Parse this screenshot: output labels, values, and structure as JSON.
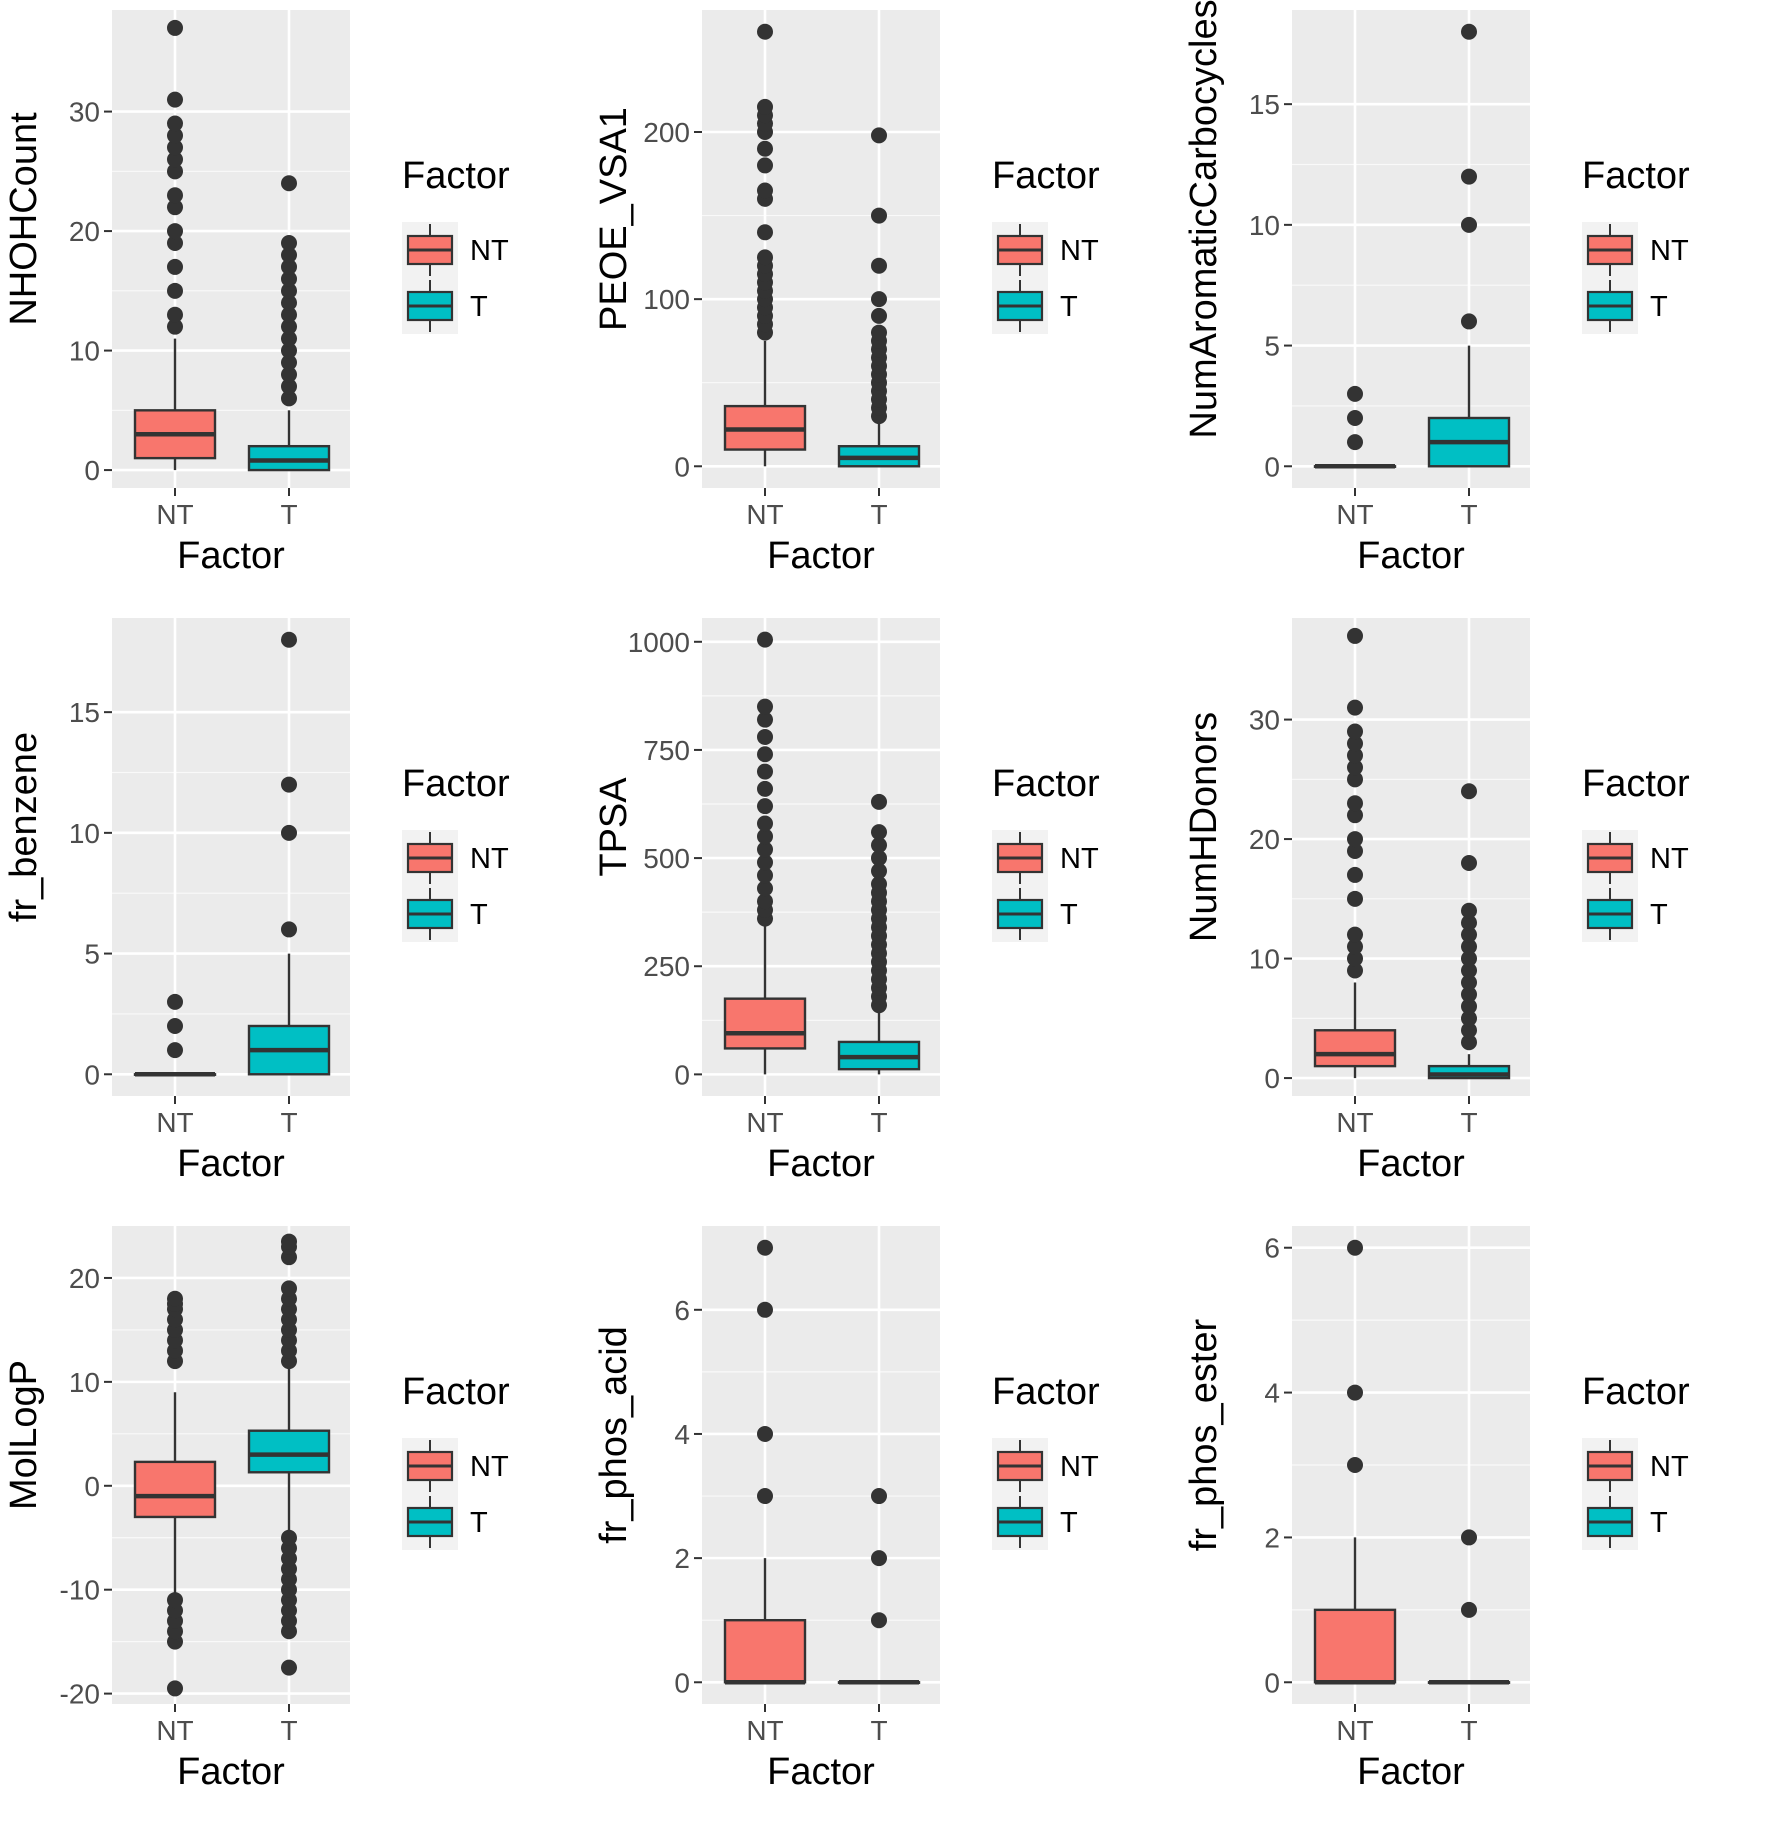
{
  "colors": {
    "NT": "#f8766d",
    "T": "#00bfc4",
    "panel_bg": "#ebebeb",
    "grid": "#ffffff",
    "outline": "#333333",
    "outlier": "#333333"
  },
  "chart_data": [
    {
      "type": "box",
      "ylabel": "NHOHCount",
      "xlabel": "Factor",
      "ylim": [
        -1.5,
        38.5
      ],
      "yticks": [
        0,
        10,
        20,
        30
      ],
      "ytick_labels": [
        "0",
        "10",
        "20",
        "30"
      ],
      "categories": [
        "NT",
        "T"
      ],
      "boxes": [
        {
          "name": "NT",
          "q1": 1,
          "median": 3,
          "q3": 5,
          "whisker_low": 0,
          "whisker_high": 11,
          "outliers": [
            12,
            13,
            15,
            17,
            19,
            20,
            22,
            23,
            25,
            26,
            27,
            28,
            29,
            31,
            37
          ]
        },
        {
          "name": "T",
          "q1": 0,
          "median": 0.8,
          "q3": 2,
          "whisker_low": 0,
          "whisker_high": 5,
          "outliers": [
            6,
            7,
            8,
            9,
            10,
            11,
            12,
            13,
            14,
            15,
            16,
            17,
            18,
            19,
            24
          ]
        }
      ],
      "legend": {
        "title": "Factor",
        "entries": [
          "NT",
          "T"
        ]
      }
    },
    {
      "type": "box",
      "ylabel": "PEOE_VSA1",
      "xlabel": "Factor",
      "ylim": [
        -13,
        273
      ],
      "yticks": [
        0,
        100,
        200
      ],
      "ytick_labels": [
        "0",
        "100",
        "200"
      ],
      "categories": [
        "NT",
        "T"
      ],
      "boxes": [
        {
          "name": "NT",
          "q1": 10,
          "median": 22,
          "q3": 36,
          "whisker_low": 0,
          "whisker_high": 75,
          "outliers": [
            80,
            85,
            90,
            95,
            100,
            105,
            110,
            115,
            120,
            125,
            140,
            160,
            165,
            180,
            190,
            200,
            205,
            210,
            215,
            260
          ]
        },
        {
          "name": "T",
          "q1": 0,
          "median": 5,
          "q3": 12,
          "whisker_low": 0,
          "whisker_high": 27,
          "outliers": [
            30,
            35,
            40,
            45,
            50,
            55,
            60,
            65,
            70,
            75,
            80,
            90,
            100,
            120,
            150,
            198
          ]
        }
      ],
      "legend": {
        "title": "Factor",
        "entries": [
          "NT",
          "T"
        ]
      }
    },
    {
      "type": "box",
      "ylabel": "NumAromaticCarbocycles",
      "xlabel": "Factor",
      "ylim": [
        -0.9,
        18.9
      ],
      "yticks": [
        0,
        5,
        10,
        15
      ],
      "ytick_labels": [
        "0",
        "5",
        "10",
        "15"
      ],
      "categories": [
        "NT",
        "T"
      ],
      "boxes": [
        {
          "name": "NT",
          "q1": 0,
          "median": 0,
          "q3": 0,
          "whisker_low": 0,
          "whisker_high": 0,
          "outliers": [
            1,
            2,
            3
          ]
        },
        {
          "name": "T",
          "q1": 0,
          "median": 1,
          "q3": 2,
          "whisker_low": 0,
          "whisker_high": 5,
          "outliers": [
            6,
            10,
            12,
            18
          ]
        }
      ],
      "legend": {
        "title": "Factor",
        "entries": [
          "NT",
          "T"
        ]
      }
    },
    {
      "type": "box",
      "ylabel": "fr_benzene",
      "xlabel": "Factor",
      "ylim": [
        -0.9,
        18.9
      ],
      "yticks": [
        0,
        5,
        10,
        15
      ],
      "ytick_labels": [
        "0",
        "5",
        "10",
        "15"
      ],
      "categories": [
        "NT",
        "T"
      ],
      "boxes": [
        {
          "name": "NT",
          "q1": 0,
          "median": 0,
          "q3": 0,
          "whisker_low": 0,
          "whisker_high": 0,
          "outliers": [
            1,
            2,
            3
          ]
        },
        {
          "name": "T",
          "q1": 0,
          "median": 1,
          "q3": 2,
          "whisker_low": 0,
          "whisker_high": 5,
          "outliers": [
            6,
            10,
            12,
            18
          ]
        }
      ],
      "legend": {
        "title": "Factor",
        "entries": [
          "NT",
          "T"
        ]
      }
    },
    {
      "type": "box",
      "ylabel": "TPSA",
      "xlabel": "Factor",
      "ylim": [
        -50,
        1055
      ],
      "yticks": [
        0,
        250,
        500,
        750,
        1000
      ],
      "ytick_labels": [
        "0",
        "250",
        "500",
        "750",
        "1000"
      ],
      "categories": [
        "NT",
        "T"
      ],
      "boxes": [
        {
          "name": "NT",
          "q1": 60,
          "median": 95,
          "q3": 175,
          "whisker_low": 0,
          "whisker_high": 345,
          "outliers": [
            360,
            380,
            400,
            430,
            460,
            490,
            520,
            550,
            580,
            620,
            660,
            700,
            740,
            780,
            820,
            850,
            1005
          ]
        },
        {
          "name": "T",
          "q1": 12,
          "median": 40,
          "q3": 75,
          "whisker_low": 0,
          "whisker_high": 150,
          "outliers": [
            160,
            180,
            200,
            220,
            240,
            260,
            280,
            300,
            320,
            340,
            360,
            380,
            400,
            420,
            440,
            470,
            500,
            530,
            560,
            630
          ]
        }
      ],
      "legend": {
        "title": "Factor",
        "entries": [
          "NT",
          "T"
        ]
      }
    },
    {
      "type": "box",
      "ylabel": "NumHDonors",
      "xlabel": "Factor",
      "ylim": [
        -1.5,
        38.5
      ],
      "yticks": [
        0,
        10,
        20,
        30
      ],
      "ytick_labels": [
        "0",
        "10",
        "20",
        "30"
      ],
      "categories": [
        "NT",
        "T"
      ],
      "boxes": [
        {
          "name": "NT",
          "q1": 1,
          "median": 2,
          "q3": 4,
          "whisker_low": 0,
          "whisker_high": 8,
          "outliers": [
            9,
            10,
            11,
            12,
            15,
            17,
            19,
            20,
            22,
            23,
            25,
            26,
            27,
            28,
            29,
            31,
            37
          ]
        },
        {
          "name": "T",
          "q1": 0,
          "median": 0.3,
          "q3": 1,
          "whisker_low": 0,
          "whisker_high": 2,
          "outliers": [
            3,
            4,
            5,
            6,
            7,
            8,
            9,
            10,
            11,
            12,
            13,
            14,
            18,
            24
          ]
        }
      ],
      "legend": {
        "title": "Factor",
        "entries": [
          "NT",
          "T"
        ]
      }
    },
    {
      "type": "box",
      "ylabel": "MolLogP",
      "xlabel": "Factor",
      "ylim": [
        -21,
        25
      ],
      "yticks": [
        -20,
        -10,
        0,
        10,
        20
      ],
      "ytick_labels": [
        "-20",
        "-10",
        "0",
        "10",
        "20"
      ],
      "categories": [
        "NT",
        "T"
      ],
      "boxes": [
        {
          "name": "NT",
          "q1": -3,
          "median": -1,
          "q3": 2.3,
          "whisker_low": -10.5,
          "whisker_high": 9,
          "outliers": [
            -19.5,
            -15,
            -14,
            -13,
            -12,
            -11,
            12,
            13,
            14,
            15,
            16,
            17,
            17.5,
            18
          ]
        },
        {
          "name": "T",
          "q1": 1.3,
          "median": 3,
          "q3": 5.3,
          "whisker_low": -4.5,
          "whisker_high": 11.5,
          "outliers": [
            -17.5,
            -14,
            -13,
            -12,
            -11,
            -10,
            -9,
            -8,
            -7,
            -6,
            -5,
            12,
            13,
            14,
            15,
            16,
            17,
            18,
            19,
            22,
            23,
            23.5
          ]
        }
      ],
      "legend": {
        "title": "Factor",
        "entries": [
          "NT",
          "T"
        ]
      }
    },
    {
      "type": "box",
      "ylabel": "fr_phos_acid",
      "xlabel": "Factor",
      "ylim": [
        -0.35,
        7.35
      ],
      "yticks": [
        0,
        2,
        4,
        6
      ],
      "ytick_labels": [
        "0",
        "2",
        "4",
        "6"
      ],
      "categories": [
        "NT",
        "T"
      ],
      "boxes": [
        {
          "name": "NT",
          "q1": 0,
          "median": 0,
          "q3": 1,
          "whisker_low": 0,
          "whisker_high": 2,
          "outliers": [
            3,
            4,
            6,
            7
          ]
        },
        {
          "name": "T",
          "q1": 0,
          "median": 0,
          "q3": 0,
          "whisker_low": 0,
          "whisker_high": 0,
          "outliers": [
            1,
            2,
            3
          ]
        }
      ],
      "legend": {
        "title": "Factor",
        "entries": [
          "NT",
          "T"
        ]
      }
    },
    {
      "type": "box",
      "ylabel": "fr_phos_ester",
      "xlabel": "Factor",
      "ylim": [
        -0.3,
        6.3
      ],
      "yticks": [
        0,
        2,
        4,
        6
      ],
      "ytick_labels": [
        "0",
        "2",
        "4",
        "6"
      ],
      "categories": [
        "NT",
        "T"
      ],
      "boxes": [
        {
          "name": "NT",
          "q1": 0,
          "median": 0,
          "q3": 1,
          "whisker_low": 0,
          "whisker_high": 2,
          "outliers": [
            3,
            4,
            6
          ]
        },
        {
          "name": "T",
          "q1": 0,
          "median": 0,
          "q3": 0,
          "whisker_low": 0,
          "whisker_high": 0,
          "outliers": [
            1,
            2
          ]
        }
      ],
      "legend": {
        "title": "Factor",
        "entries": [
          "NT",
          "T"
        ]
      }
    }
  ]
}
